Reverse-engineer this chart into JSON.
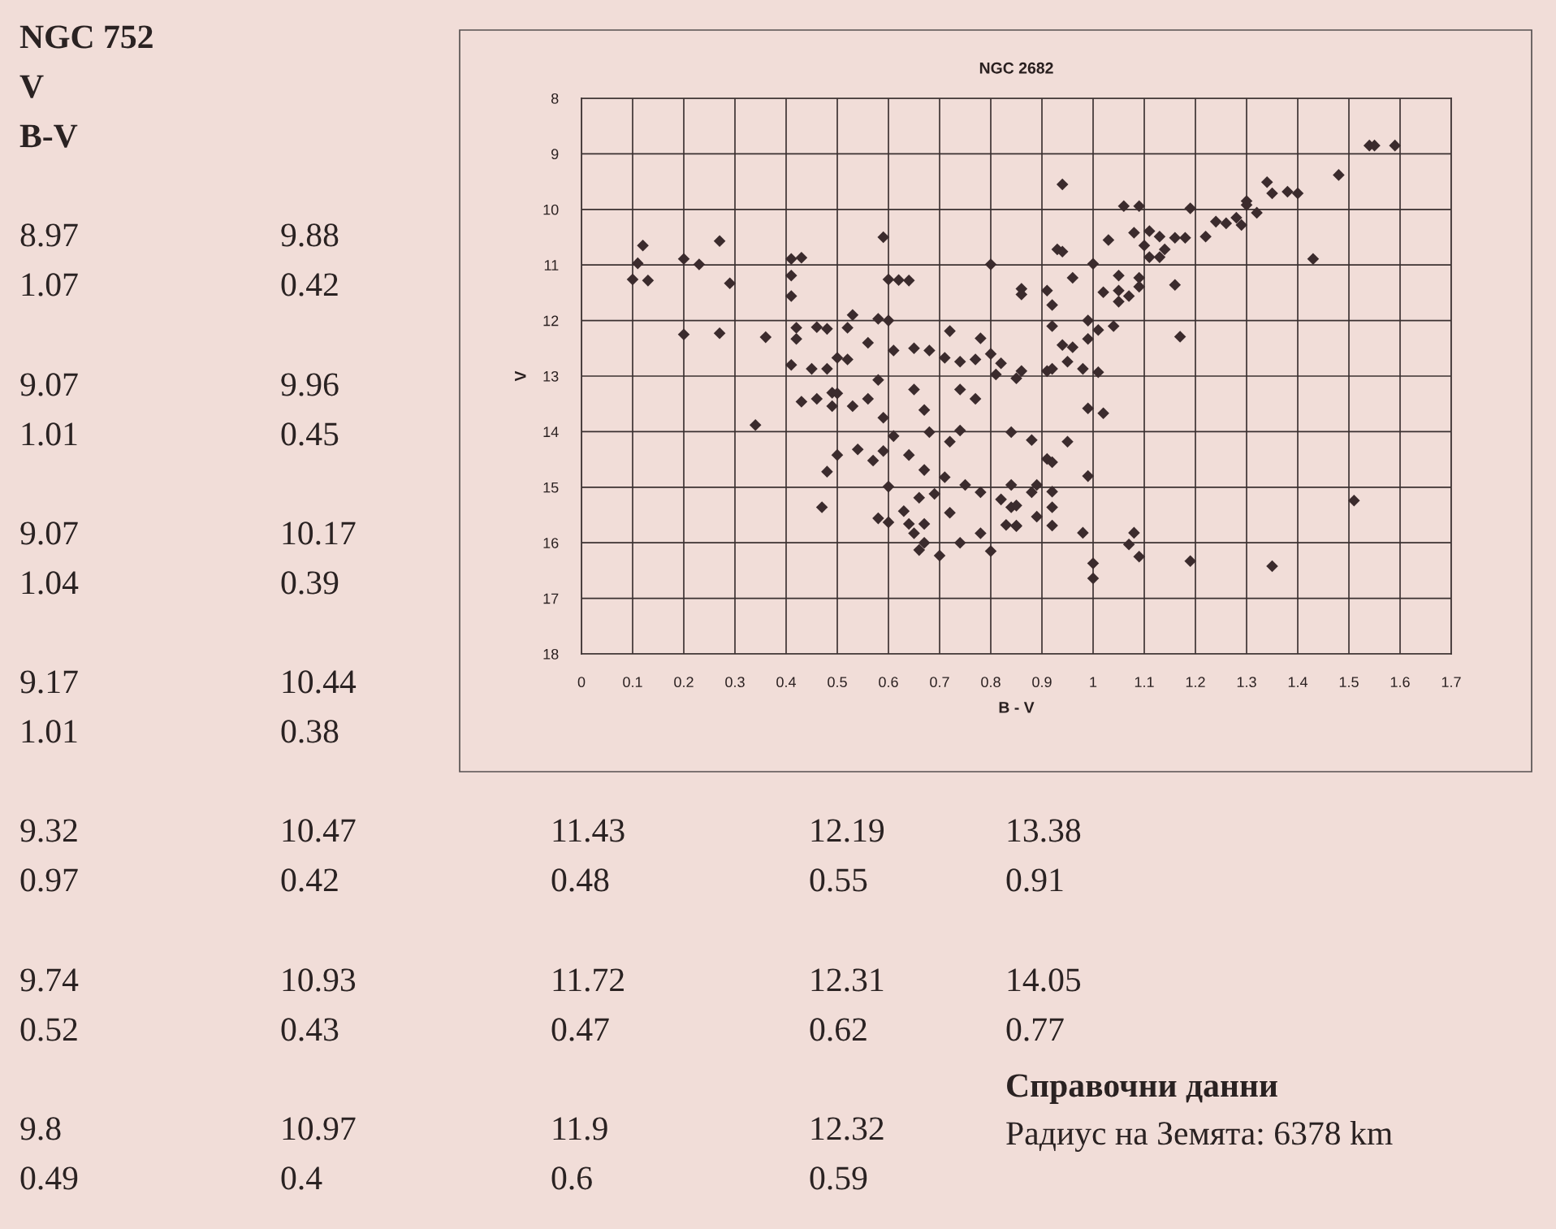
{
  "chart_data": {
    "type": "scatter",
    "title": "NGC 2682",
    "xlabel": "B - V",
    "ylabel": "V",
    "x": [
      0.12,
      0.11,
      0.1,
      0.13,
      0.2,
      0.23,
      0.27,
      0.29,
      0.2,
      0.27,
      0.36,
      0.41,
      0.43,
      0.41,
      0.41,
      0.59,
      0.6,
      0.62,
      0.64,
      0.8,
      0.34,
      0.42,
      0.42,
      0.46,
      0.48,
      0.52,
      0.53,
      0.41,
      0.45,
      0.48,
      0.5,
      0.52,
      0.58,
      0.6,
      0.72,
      0.78,
      0.43,
      0.46,
      0.49,
      0.49,
      0.5,
      0.53,
      0.56,
      0.58,
      0.56,
      0.59,
      0.61,
      0.64,
      0.67,
      0.71,
      0.75,
      0.78,
      0.82,
      0.84,
      0.61,
      0.65,
      0.68,
      0.71,
      0.74,
      0.77,
      0.8,
      0.82,
      0.81,
      0.74,
      0.77,
      0.65,
      0.67,
      0.84,
      0.74,
      0.72,
      0.68,
      0.5,
      0.54,
      0.48,
      0.57,
      0.59,
      0.47,
      0.6,
      0.66,
      0.69,
      0.72,
      0.58,
      0.6,
      0.63,
      0.64,
      0.67,
      0.65,
      0.67,
      0.66,
      0.7,
      0.74,
      0.78,
      0.8,
      0.83,
      0.85,
      0.84,
      1.54,
      1.55,
      1.59,
      1.48,
      1.34,
      1.35,
      1.38,
      1.4,
      1.3,
      1.3,
      1.32,
      1.24,
      1.26,
      1.28,
      1.29,
      1.19,
      1.06,
      1.09,
      0.94,
      1.22,
      1.18,
      1.16,
      1.08,
      1.11,
      1.13,
      1.1,
      1.11,
      1.13,
      1.14,
      1.03,
      0.93,
      0.94,
      1.0,
      1.43,
      0.96,
      0.91,
      0.92,
      0.86,
      0.86,
      1.02,
      1.05,
      1.05,
      1.05,
      1.07,
      1.09,
      1.09,
      1.16,
      0.92,
      0.99,
      1.01,
      1.04,
      0.99,
      0.96,
      0.94,
      0.95,
      1.17,
      0.85,
      0.86,
      0.91,
      0.92,
      0.98,
      1.01,
      0.99,
      1.02,
      0.88,
      0.95,
      0.91,
      0.92,
      0.99,
      0.89,
      0.88,
      0.92,
      0.85,
      0.89,
      0.85,
      0.92,
      0.92,
      0.98,
      1.08,
      1.07,
      1.09,
      1.0,
      1.0,
      1.19,
      1.35,
      1.51
    ],
    "values": [
      10.65,
      10.97,
      11.26,
      11.28,
      10.89,
      10.99,
      10.57,
      11.33,
      12.25,
      12.23,
      12.3,
      10.89,
      10.87,
      11.19,
      11.56,
      10.5,
      11.26,
      11.27,
      11.28,
      10.99,
      13.88,
      12.13,
      12.33,
      12.12,
      12.15,
      12.13,
      11.9,
      12.8,
      12.87,
      12.87,
      12.67,
      12.7,
      11.97,
      12.0,
      12.19,
      12.32,
      13.46,
      13.41,
      13.3,
      13.54,
      13.31,
      13.54,
      12.4,
      13.07,
      13.41,
      13.75,
      14.08,
      14.42,
      14.69,
      14.82,
      14.96,
      15.09,
      15.22,
      15.36,
      12.54,
      12.5,
      12.54,
      12.67,
      12.74,
      12.7,
      12.6,
      12.77,
      12.97,
      13.24,
      13.41,
      13.24,
      13.61,
      14.01,
      13.98,
      14.18,
      14.01,
      14.42,
      14.32,
      14.72,
      14.52,
      14.35,
      15.36,
      14.99,
      15.19,
      15.12,
      15.46,
      15.56,
      15.63,
      15.43,
      15.66,
      15.66,
      15.83,
      16.0,
      16.13,
      16.23,
      16.0,
      15.83,
      16.15,
      15.68,
      15.7,
      14.96,
      8.85,
      8.85,
      8.85,
      9.38,
      9.51,
      9.71,
      9.68,
      9.71,
      9.85,
      9.92,
      10.06,
      10.22,
      10.25,
      10.15,
      10.28,
      9.98,
      9.94,
      9.94,
      9.55,
      10.49,
      10.51,
      10.51,
      10.42,
      10.39,
      10.49,
      10.65,
      10.86,
      10.86,
      10.72,
      10.55,
      10.72,
      10.76,
      10.98,
      10.89,
      11.23,
      11.46,
      11.72,
      11.43,
      11.53,
      11.49,
      11.19,
      11.46,
      11.66,
      11.56,
      11.23,
      11.39,
      11.36,
      12.1,
      12.0,
      12.17,
      12.1,
      12.33,
      12.48,
      12.44,
      12.74,
      12.29,
      13.04,
      12.91,
      12.91,
      12.87,
      12.87,
      12.93,
      13.58,
      13.67,
      14.15,
      14.18,
      14.49,
      14.55,
      14.8,
      14.96,
      15.09,
      15.08,
      15.33,
      15.53,
      15.69,
      15.36,
      15.69,
      15.82,
      15.82,
      16.03,
      16.25,
      16.37,
      16.64,
      16.33,
      16.42,
      15.24
    ],
    "color": "#3b2b2d",
    "marker": "diamond",
    "xlim": [
      0,
      1.7
    ],
    "xticks": [
      0,
      0.1,
      0.2,
      0.3,
      0.4,
      0.5,
      0.6,
      0.7,
      0.8,
      0.9,
      1,
      1.1,
      1.2,
      1.3,
      1.4,
      1.5,
      1.6,
      1.7
    ],
    "ylim": [
      18,
      8
    ],
    "yticks": [
      8,
      9,
      10,
      11,
      12,
      13,
      14,
      15,
      16,
      17,
      18
    ],
    "grid": true,
    "annotations": [
      "NGC 752",
      "V",
      "B-V",
      "8.97",
      "1.07",
      "9.07",
      "1.01",
      "9.07",
      "1.04",
      "9.17",
      "1.01",
      "9.32",
      "0.97",
      "9.74",
      "0.52",
      "9.8",
      "0.49",
      "9.88",
      "0.42",
      "9.96",
      "0.45",
      "10.17",
      "0.39",
      "10.44",
      "0.38",
      "10.47",
      "0.42",
      "10.93",
      "0.43",
      "10.97",
      "0.4",
      "11.43",
      "0.48",
      "11.72",
      "0.47",
      "11.9",
      "0.6",
      "12.19",
      "0.55",
      "12.31",
      "0.62",
      "12.32",
      "0.59",
      "13.38",
      "0.91",
      "14.05",
      "0.77",
      "Справочни данни",
      "Радиус на Земята: 6378 km"
    ]
  }
}
